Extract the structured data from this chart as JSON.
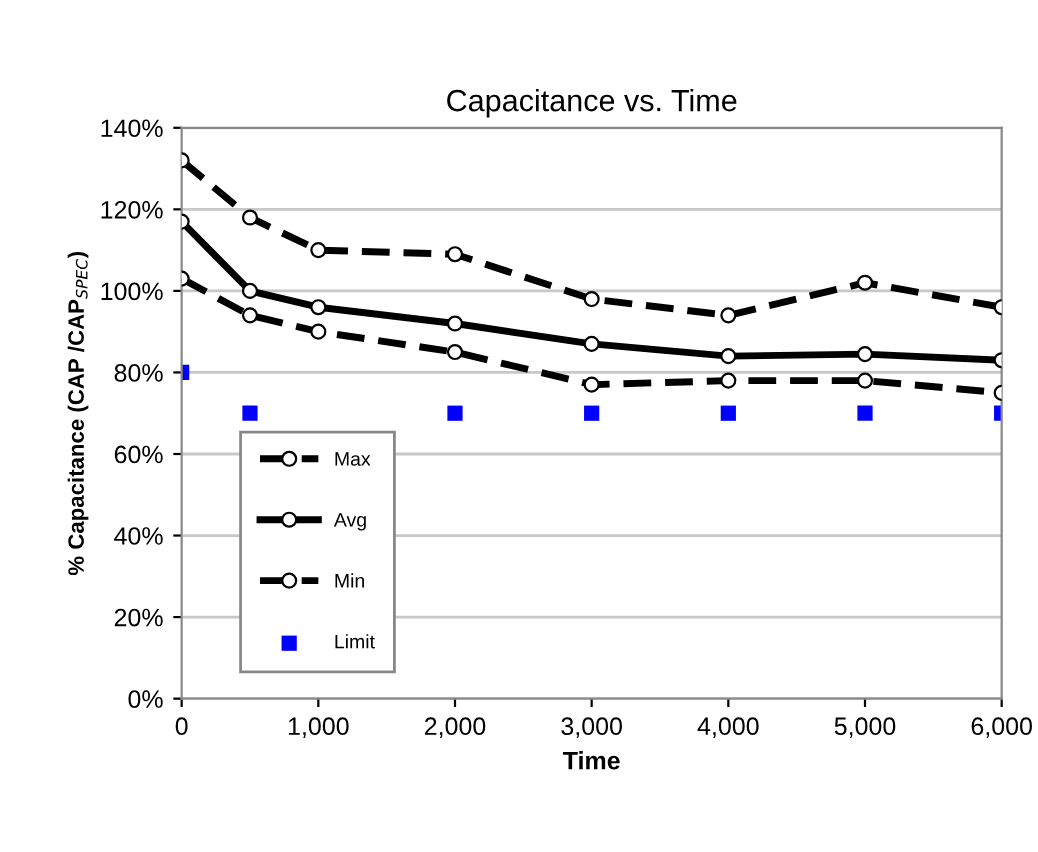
{
  "chart_data": {
    "type": "line",
    "title": "Capacitance vs. Time",
    "xlabel": "Time",
    "ylabel": "% Capacitance (CAP /CAP$_{SPEC}$)",
    "x": [
      0,
      500,
      1000,
      2000,
      3000,
      4000,
      5000,
      6000
    ],
    "series": [
      {
        "name": "Max",
        "color": "#000000",
        "line_style": "dashed",
        "marker": "circle",
        "values": [
          132,
          118,
          110,
          109,
          98,
          94,
          102,
          96
        ]
      },
      {
        "name": "Avg",
        "color": "#000000",
        "line_style": "solid",
        "marker": "circle",
        "values": [
          117,
          100,
          96,
          92,
          87,
          84,
          84.5,
          83
        ]
      },
      {
        "name": "Min",
        "color": "#000000",
        "line_style": "dashed",
        "marker": "circle",
        "values": [
          103,
          94,
          90,
          85,
          77,
          78,
          78,
          75
        ]
      },
      {
        "name": "Limit",
        "type": "scatter",
        "color": "#0000ff",
        "x": [
          0,
          500,
          2000,
          3000,
          4000,
          5000,
          6000
        ],
        "values": [
          80,
          70,
          70,
          70,
          70,
          70,
          70
        ]
      }
    ],
    "xlim": [
      0,
      6000
    ],
    "xticks": [
      0,
      {
        "value": 1000,
        "label": "1,000"
      },
      {
        "value": 2000,
        "label": "2,000"
      },
      {
        "value": 3000,
        "label": "3,000"
      },
      {
        "value": 4000,
        "label": "4,000"
      },
      {
        "value": 5000,
        "label": "5,000"
      },
      {
        "value": 6000,
        "label": "6,000"
      }
    ],
    "ylim": [
      0,
      140
    ],
    "yticks": [
      {
        "value": 0,
        "label": "0%"
      },
      {
        "value": 20,
        "label": "20%"
      },
      {
        "value": 40,
        "label": "40%"
      },
      {
        "value": 60,
        "label": "60%"
      },
      {
        "value": 80,
        "label": "80%"
      },
      {
        "value": 100,
        "label": "100%"
      },
      {
        "value": 120,
        "label": "120%"
      },
      {
        "value": 140,
        "label": "140%"
      }
    ],
    "grid": "y",
    "legend": "bottom left"
  }
}
